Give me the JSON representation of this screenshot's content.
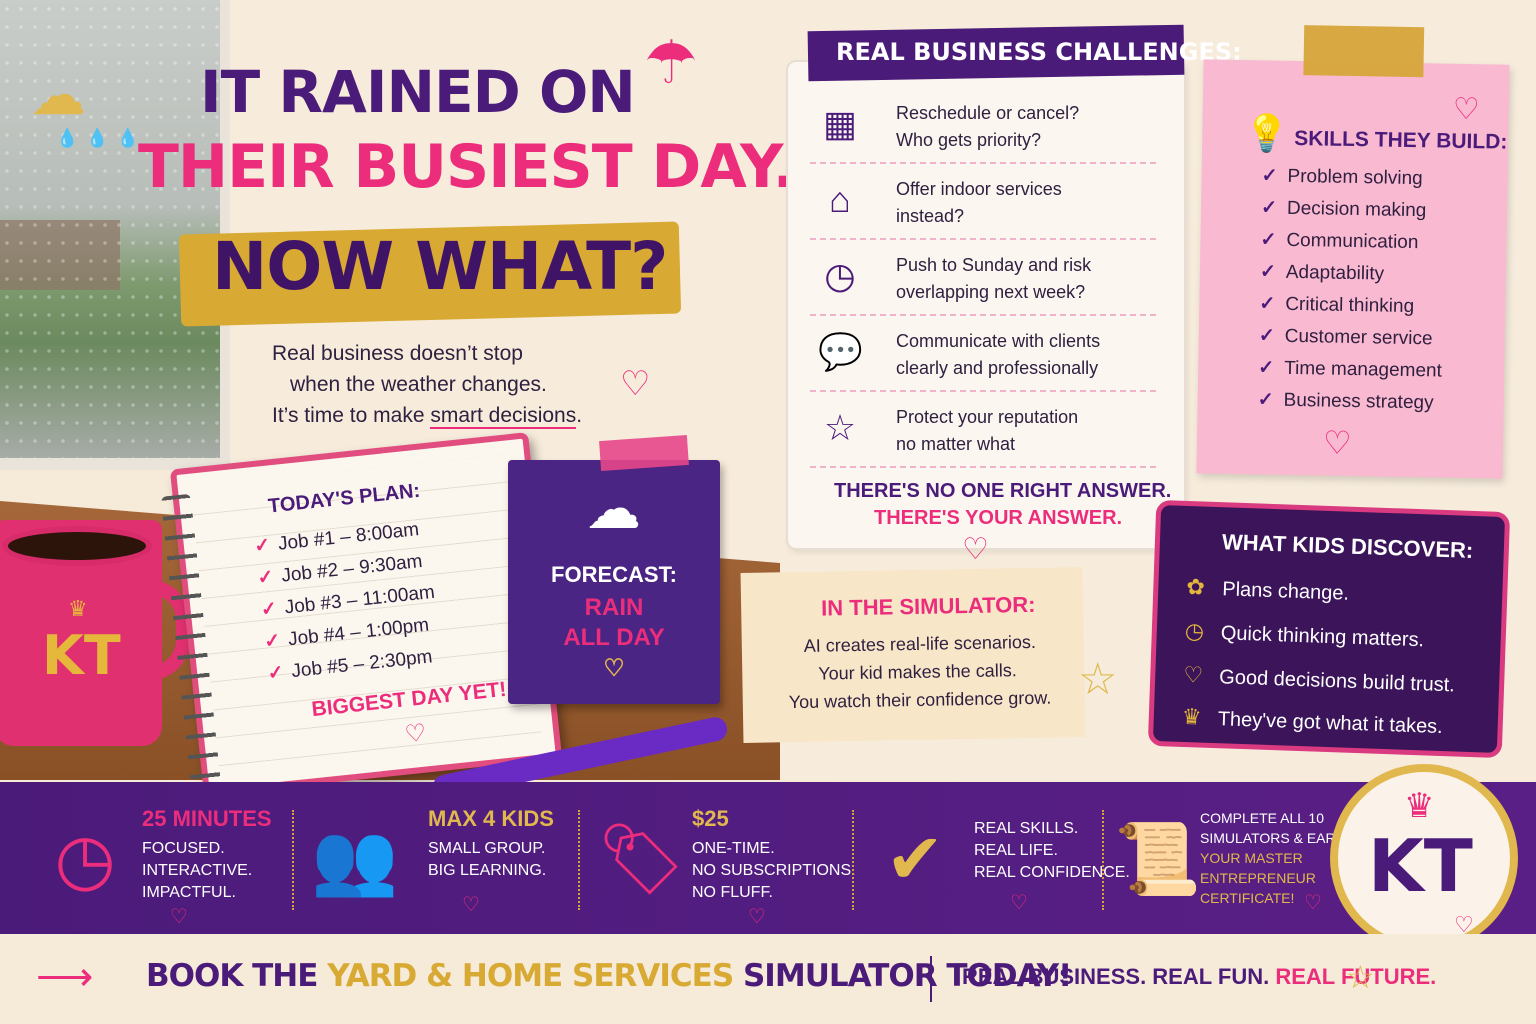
{
  "colors": {
    "purple": "#4b1b7a",
    "pink": "#ec2d7c",
    "gold": "#d8a933"
  },
  "headline": {
    "line1": "IT RAINED ON",
    "line2": "THEIR BUSIEST DAY.",
    "line3": "NOW WHAT?"
  },
  "subtext": {
    "line1": "Real business doesn’t stop",
    "line2": "when the weather changes.",
    "line3_pre": "It’s time to make ",
    "line3_em": "smart decisions",
    "line3_post": "."
  },
  "notebook": {
    "title": "TODAY'S PLAN:",
    "jobs": [
      "Job #1 – 8:00am",
      "Job #2 – 9:30am",
      "Job #3 – 11:00am",
      "Job #4 – 1:00pm",
      "Job #5 – 2:30pm"
    ],
    "footer": "BIGGEST DAY YET!"
  },
  "forecast": {
    "label": "FORECAST:",
    "line1": "RAIN",
    "line2": "ALL DAY"
  },
  "mug": {
    "text": "KT"
  },
  "challenges": {
    "title": "REAL BUSINESS CHALLENGES:",
    "items": [
      {
        "icon": "calendar-icon",
        "line1": "Reschedule or cancel?",
        "line2": "Who gets priority?"
      },
      {
        "icon": "house-icon",
        "line1": "Offer indoor services",
        "line2": "instead?"
      },
      {
        "icon": "clock-icon",
        "line1": "Push to Sunday and risk",
        "line2": "overlapping next week?"
      },
      {
        "icon": "chat-icon",
        "line1": "Communicate with clients",
        "line2": "clearly and professionally"
      },
      {
        "icon": "star-icon",
        "line1": "Protect your reputation",
        "line2": "no matter what"
      }
    ],
    "answer1": "THERE'S NO ONE RIGHT ANSWER.",
    "answer2": "THERE'S YOUR ANSWER."
  },
  "skills": {
    "title": "SKILLS THEY BUILD:",
    "items": [
      "Problem solving",
      "Decision making",
      "Communication",
      "Adaptability",
      "Critical thinking",
      "Customer service",
      "Time management",
      "Business strategy"
    ]
  },
  "simulator": {
    "title": "IN THE SIMULATOR:",
    "lines": [
      "AI creates real-life scenarios.",
      "Your kid makes the calls.",
      "You watch their confidence grow."
    ]
  },
  "discover": {
    "title": "WHAT KIDS DISCOVER:",
    "items": [
      {
        "icon": "flower-icon",
        "text": "Plans change."
      },
      {
        "icon": "clock-icon",
        "text": "Quick thinking matters."
      },
      {
        "icon": "heart-icon",
        "text": "Good decisions build trust."
      },
      {
        "icon": "crown-icon",
        "text": "They've got what it takes."
      }
    ]
  },
  "band": [
    {
      "icon": "clock-icon",
      "head": "25 MINUTES",
      "lines": [
        "FOCUSED.",
        "INTERACTIVE.",
        "IMPACTFUL."
      ]
    },
    {
      "icon": "people-icon",
      "head": "MAX 4 KIDS",
      "lines": [
        "SMALL GROUP.",
        "BIG LEARNING."
      ]
    },
    {
      "icon": "price-tag-icon",
      "head": "$25",
      "lines": [
        "ONE-TIME.",
        "NO SUBSCRIPTIONS.",
        "NO FLUFF."
      ]
    },
    {
      "icon": "checkmark-icon",
      "head": "",
      "lines": [
        "REAL SKILLS.",
        "REAL LIFE.",
        "REAL CONFIDENCE."
      ]
    },
    {
      "icon": "certificate-icon",
      "head": "",
      "lines": [
        "COMPLETE ALL 10",
        "SIMULATORS & EARN"
      ],
      "gold_lines": [
        "YOUR MASTER",
        "ENTREPRENEUR",
        "CERTIFICATE!"
      ]
    }
  ],
  "logo": {
    "text": "KT"
  },
  "footer": {
    "cta_part1": "BOOK THE ",
    "cta_part2": "YARD & HOME SERVICES",
    "cta_part3": " SIMULATOR TODAY!",
    "tag_part1": "REAL BUSINESS. REAL FUN. ",
    "tag_part2": "REAL FUTURE."
  }
}
